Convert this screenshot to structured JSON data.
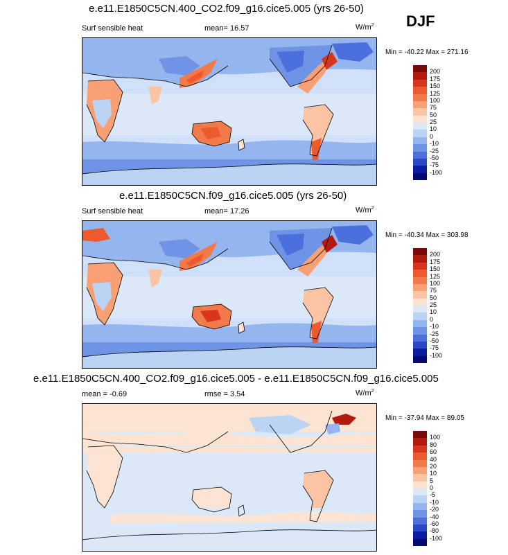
{
  "season": "DJF",
  "panels": [
    {
      "title": "e.e11.E1850C5CN.400_CO2.f09_g16.cice5.005 (yrs 26-50)",
      "left_label": "Surf sensible heat",
      "center_label": "mean=  16.57",
      "units_base": "W/m",
      "units_exp": "2",
      "minmax": "Min = -40.22 Max = 271.16",
      "colorbar_labels": [
        "200",
        "175",
        "150",
        "125",
        "100",
        "75",
        "50",
        "25",
        "10",
        "0",
        "-10",
        "-25",
        "-50",
        "-75",
        "-100"
      ]
    },
    {
      "title": "e.e11.E1850C5CN.f09_g16.cice5.005 (yrs 26-50)",
      "left_label": "Surf sensible heat",
      "center_label": "mean=  17.26",
      "units_base": "W/m",
      "units_exp": "2",
      "minmax": "Min = -40.34 Max = 303.98",
      "colorbar_labels": [
        "200",
        "175",
        "150",
        "125",
        "100",
        "75",
        "50",
        "25",
        "10",
        "0",
        "-10",
        "-25",
        "-50",
        "-75",
        "-100"
      ]
    },
    {
      "title": "e.e11.E1850C5CN.400_CO2.f09_g16.cice5.005 - e.e11.E1850C5CN.f09_g16.cice5.005",
      "left_label": "mean =  -0.69",
      "center_label": "rmse =   3.54",
      "units_base": "W/m",
      "units_exp": "2",
      "minmax": "Min = -37.94 Max = 89.05",
      "colorbar_labels": [
        "100",
        "80",
        "60",
        "40",
        "20",
        "10",
        "5",
        "0",
        "-5",
        "-10",
        "-20",
        "-40",
        "-60",
        "-80",
        "-100"
      ]
    }
  ],
  "colorbar_colors": [
    "#7a0a0a",
    "#b31a0f",
    "#d8361c",
    "#ec5a2e",
    "#f27a4a",
    "#f89f74",
    "#fbc4a5",
    "#fde4d2",
    "#dbe8f8",
    "#bcd4f4",
    "#94b5ee",
    "#6f94e6",
    "#4b70dd",
    "#2a47c8",
    "#0c1ea0",
    "#040a6e"
  ]
}
